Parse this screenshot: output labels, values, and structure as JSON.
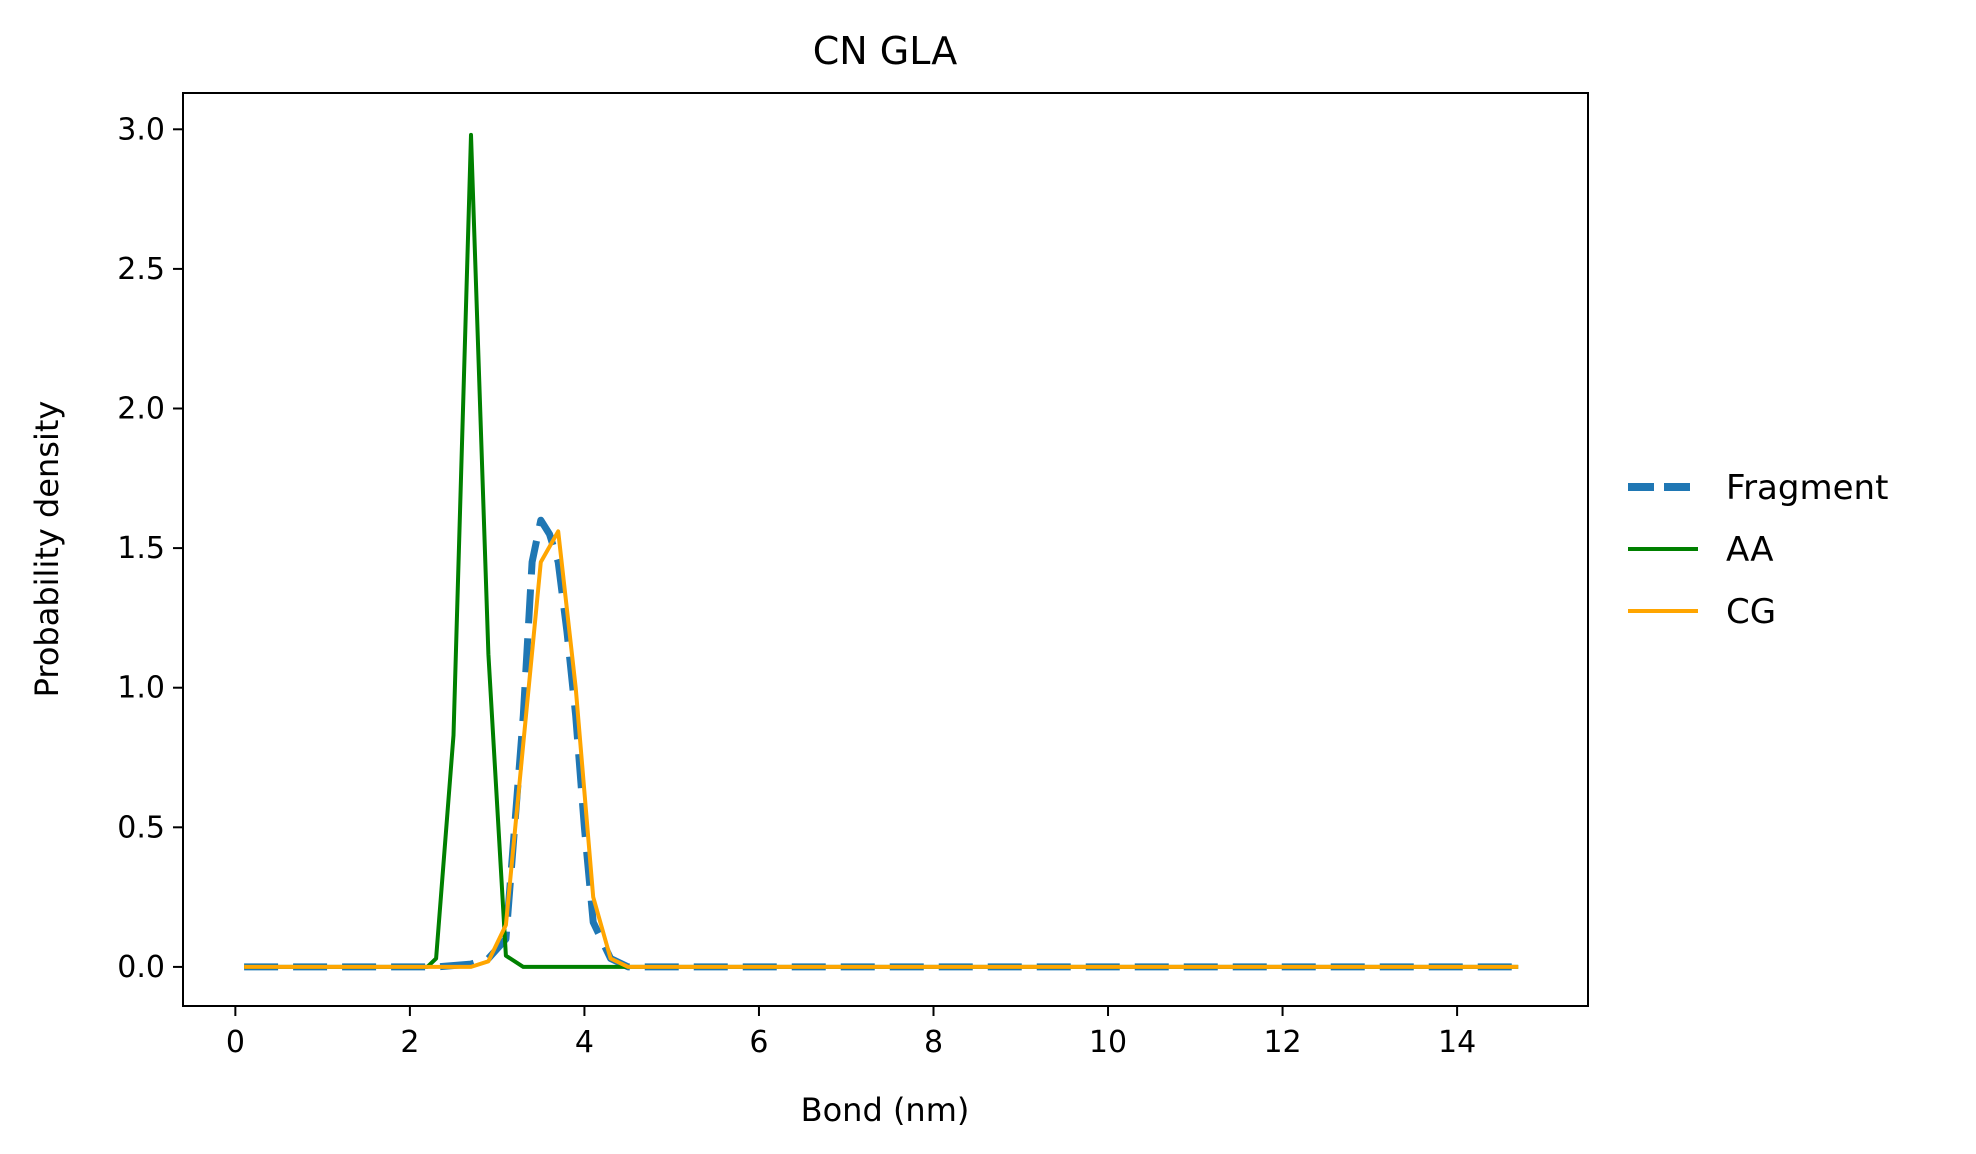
{
  "chart_data": {
    "type": "line",
    "title": "CN GLA",
    "xlabel": "Bond (nm)",
    "ylabel": "Probability density",
    "xlim": [
      -0.6,
      15.5
    ],
    "ylim": [
      -0.14,
      3.13
    ],
    "xticks": [
      0,
      2,
      4,
      6,
      8,
      10,
      12,
      14
    ],
    "xtick_labels": [
      "0",
      "2",
      "4",
      "6",
      "8",
      "10",
      "12",
      "14"
    ],
    "yticks": [
      0.0,
      0.5,
      1.0,
      1.5,
      2.0,
      2.5,
      3.0
    ],
    "ytick_labels": [
      "0.0",
      "0.5",
      "1.0",
      "1.5",
      "2.0",
      "2.5",
      "3.0"
    ],
    "grid": false,
    "legend_position": "outside-right",
    "series": [
      {
        "name": "Fragment",
        "color": "#1f77b4",
        "style": "dashed",
        "x": [
          0.1,
          2.3,
          2.7,
          2.9,
          3.1,
          3.3,
          3.4,
          3.5,
          3.6,
          3.7,
          3.8,
          3.9,
          4.0,
          4.1,
          4.3,
          4.5,
          5.0,
          8.0,
          11.0,
          14.7
        ],
        "y": [
          0.0,
          0.0,
          0.01,
          0.03,
          0.1,
          0.9,
          1.45,
          1.6,
          1.55,
          1.45,
          1.2,
          0.9,
          0.5,
          0.16,
          0.03,
          0.0,
          0.0,
          0.0,
          0.0,
          0.0
        ]
      },
      {
        "name": "AA",
        "color": "#008000",
        "style": "solid",
        "x": [
          0.1,
          2.2,
          2.3,
          2.5,
          2.7,
          2.9,
          3.1,
          3.3,
          3.5,
          4.5,
          8.0,
          14.7
        ],
        "y": [
          0.0,
          0.0,
          0.03,
          0.83,
          2.98,
          1.12,
          0.04,
          0.0,
          0.0,
          0.0,
          0.0,
          0.0
        ]
      },
      {
        "name": "CG",
        "color": "#ffa500",
        "style": "solid",
        "x": [
          0.1,
          2.5,
          2.7,
          2.9,
          3.1,
          3.3,
          3.5,
          3.7,
          3.9,
          4.1,
          4.3,
          4.5,
          8.0,
          14.7
        ],
        "y": [
          0.0,
          0.0,
          0.0,
          0.02,
          0.15,
          0.8,
          1.45,
          1.56,
          1.0,
          0.25,
          0.03,
          0.0,
          0.0,
          0.0
        ]
      }
    ]
  }
}
